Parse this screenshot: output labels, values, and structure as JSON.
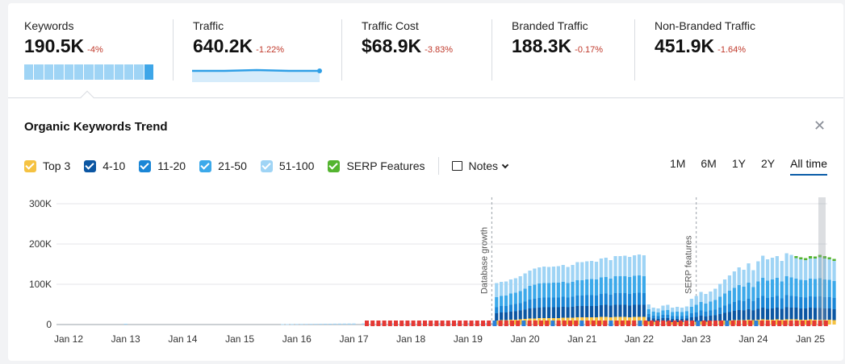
{
  "metrics": [
    {
      "label": "Keywords",
      "value": "190.5K",
      "change": "-4%"
    },
    {
      "label": "Traffic",
      "value": "640.2K",
      "change": "-1.22%"
    },
    {
      "label": "Traffic Cost",
      "value": "$68.9K",
      "change": "-3.83%"
    },
    {
      "label": "Branded Traffic",
      "value": "188.3K",
      "change": "-0.17%"
    },
    {
      "label": "Non-Branded Traffic",
      "value": "451.9K",
      "change": "-1.64%"
    }
  ],
  "panel": {
    "title": "Organic Keywords Trend"
  },
  "legend": [
    {
      "label": "Top 3",
      "color": "#f5c242"
    },
    {
      "label": "4-10",
      "color": "#0b56a3"
    },
    {
      "label": "11-20",
      "color": "#1a86d6"
    },
    {
      "label": "21-50",
      "color": "#3ca9ea"
    },
    {
      "label": "51-100",
      "color": "#9fd4f5"
    },
    {
      "label": "SERP Features",
      "color": "#54b430"
    }
  ],
  "notes_label": "Notes",
  "ranges": [
    "1M",
    "6M",
    "1Y",
    "2Y",
    "All time"
  ],
  "chart_data": {
    "type": "bar",
    "stacked": true,
    "ylim": [
      0,
      300000
    ],
    "y_ticks": [
      0,
      100000,
      200000,
      300000
    ],
    "y_tick_labels": [
      "0",
      "100K",
      "200K",
      "300K"
    ],
    "x_tick_labels": [
      "Jan 12",
      "Jan 13",
      "Jan 14",
      "Jan 15",
      "Jan 16",
      "Jan 17",
      "Jan 18",
      "Jan 19",
      "Jan 20",
      "Jan 21",
      "Jan 22",
      "Jan 23",
      "Jan 24",
      "Jan 25"
    ],
    "annotations": [
      {
        "text": "Database growth",
        "x": "2019-06"
      },
      {
        "text": "SERP features",
        "x": "2023-01"
      }
    ],
    "series_order": [
      "Top 3",
      "4-10",
      "11-20",
      "21-50",
      "51-100",
      "SERP Features"
    ],
    "points": [
      {
        "x": "2013-01",
        "values": [
          0,
          0,
          0,
          0,
          2000,
          0
        ]
      },
      {
        "x": "2015-10",
        "values": [
          0,
          0,
          0,
          0,
          1000,
          0
        ]
      },
      {
        "x": "2015-11",
        "values": [
          0,
          0,
          0,
          0,
          1000,
          0
        ]
      },
      {
        "x": "2015-12",
        "values": [
          0,
          0,
          0,
          0,
          1200,
          0
        ]
      },
      {
        "x": "2016-01",
        "values": [
          0,
          0,
          0,
          0,
          1300,
          0
        ]
      },
      {
        "x": "2016-02",
        "values": [
          0,
          0,
          0,
          0,
          1400,
          0
        ]
      },
      {
        "x": "2016-03",
        "values": [
          0,
          0,
          0,
          0,
          1500,
          0
        ]
      },
      {
        "x": "2016-04",
        "values": [
          0,
          0,
          0,
          0,
          1600,
          0
        ]
      },
      {
        "x": "2016-05",
        "values": [
          0,
          0,
          0,
          0,
          1700,
          0
        ]
      },
      {
        "x": "2016-06",
        "values": [
          0,
          0,
          0,
          0,
          1800,
          0
        ]
      },
      {
        "x": "2016-07",
        "values": [
          0,
          0,
          0,
          0,
          2000,
          0
        ]
      },
      {
        "x": "2016-08",
        "values": [
          0,
          0,
          0,
          0,
          2000,
          0
        ]
      },
      {
        "x": "2016-09",
        "values": [
          0,
          0,
          0,
          0,
          2200,
          0
        ]
      },
      {
        "x": "2016-10",
        "values": [
          0,
          0,
          0,
          0,
          2300,
          0
        ]
      },
      {
        "x": "2016-11",
        "values": [
          0,
          0,
          0,
          0,
          2400,
          0
        ]
      },
      {
        "x": "2016-12",
        "values": [
          0,
          0,
          0,
          0,
          2500,
          0
        ]
      },
      {
        "x": "2017-01",
        "values": [
          0,
          0,
          0,
          0,
          2600,
          0
        ]
      },
      {
        "x": "2017-03",
        "values": [
          0,
          0,
          0,
          0,
          2700,
          0
        ]
      },
      {
        "x": "2017-05",
        "values": [
          0,
          0,
          0,
          0,
          2800,
          0
        ]
      },
      {
        "x": "2017-07",
        "values": [
          0,
          0,
          0,
          0,
          2800,
          0
        ]
      },
      {
        "x": "2017-09",
        "values": [
          0,
          0,
          0,
          0,
          2900,
          0
        ]
      },
      {
        "x": "2017-11",
        "values": [
          0,
          0,
          0,
          0,
          3000,
          0
        ]
      },
      {
        "x": "2018-01",
        "values": [
          0,
          0,
          0,
          0,
          3000,
          0
        ]
      },
      {
        "x": "2018-03",
        "values": [
          0,
          0,
          0,
          0,
          3000,
          0
        ]
      },
      {
        "x": "2018-05",
        "values": [
          0,
          0,
          0,
          0,
          3100,
          0
        ]
      },
      {
        "x": "2018-07",
        "values": [
          0,
          0,
          0,
          0,
          3200,
          0
        ]
      },
      {
        "x": "2018-09",
        "values": [
          0,
          0,
          0,
          0,
          3200,
          0
        ]
      },
      {
        "x": "2018-11",
        "values": [
          0,
          0,
          0,
          0,
          3300,
          0
        ]
      },
      {
        "x": "2019-01",
        "values": [
          0,
          0,
          0,
          0,
          3300,
          0
        ]
      },
      {
        "x": "2019-03",
        "values": [
          0,
          0,
          0,
          0,
          3400,
          0
        ]
      },
      {
        "x": "2019-05",
        "values": [
          0,
          0,
          0,
          0,
          3500,
          0
        ]
      },
      {
        "x": "2019-07",
        "values": [
          10000,
          18000,
          15000,
          25000,
          35000,
          0
        ]
      },
      {
        "x": "2019-08",
        "values": [
          11000,
          19000,
          16000,
          25000,
          35000,
          0
        ]
      },
      {
        "x": "2019-09",
        "values": [
          11000,
          19000,
          16000,
          26000,
          35000,
          0
        ]
      },
      {
        "x": "2019-10",
        "values": [
          12000,
          20000,
          17000,
          28000,
          35000,
          0
        ]
      },
      {
        "x": "2019-11",
        "values": [
          12000,
          21000,
          18000,
          28000,
          36000,
          0
        ]
      },
      {
        "x": "2019-12",
        "values": [
          13000,
          22000,
          18000,
          30000,
          37000,
          0
        ]
      },
      {
        "x": "2020-01",
        "values": [
          14000,
          23000,
          20000,
          32000,
          38000,
          0
        ]
      },
      {
        "x": "2020-02",
        "values": [
          15000,
          25000,
          22000,
          34000,
          38000,
          0
        ]
      },
      {
        "x": "2020-03",
        "values": [
          15000,
          26000,
          23000,
          35000,
          40000,
          0
        ]
      },
      {
        "x": "2020-04",
        "values": [
          16000,
          26000,
          24000,
          36000,
          40000,
          0
        ]
      },
      {
        "x": "2020-05",
        "values": [
          16000,
          27000,
          24000,
          36000,
          41000,
          0
        ]
      },
      {
        "x": "2020-06",
        "values": [
          16000,
          27000,
          24000,
          36000,
          40000,
          0
        ]
      },
      {
        "x": "2020-07",
        "values": [
          16000,
          27000,
          24000,
          37000,
          40000,
          0
        ]
      },
      {
        "x": "2020-08",
        "values": [
          16000,
          27000,
          24000,
          37000,
          41000,
          0
        ]
      },
      {
        "x": "2020-09",
        "values": [
          17000,
          27000,
          25000,
          37000,
          42000,
          0
        ]
      },
      {
        "x": "2020-10",
        "values": [
          17000,
          26000,
          24000,
          36000,
          40000,
          0
        ]
      },
      {
        "x": "2020-11",
        "values": [
          17000,
          27000,
          25000,
          37000,
          42000,
          0
        ]
      },
      {
        "x": "2020-12",
        "values": [
          18000,
          28000,
          26000,
          38000,
          45000,
          0
        ]
      },
      {
        "x": "2021-01",
        "values": [
          18000,
          28000,
          26000,
          38000,
          45000,
          0
        ]
      },
      {
        "x": "2021-02",
        "values": [
          18000,
          28000,
          27000,
          39000,
          45000,
          0
        ]
      },
      {
        "x": "2021-03",
        "values": [
          18000,
          28000,
          27000,
          40000,
          45000,
          0
        ]
      },
      {
        "x": "2021-04",
        "values": [
          18000,
          28000,
          26000,
          40000,
          44000,
          0
        ]
      },
      {
        "x": "2021-05",
        "values": [
          19000,
          29000,
          28000,
          41000,
          47000,
          0
        ]
      },
      {
        "x": "2021-06",
        "values": [
          19000,
          30000,
          28000,
          41000,
          48000,
          0
        ]
      },
      {
        "x": "2021-07",
        "values": [
          18000,
          29000,
          27000,
          40000,
          46000,
          0
        ]
      },
      {
        "x": "2021-08",
        "values": [
          19000,
          30000,
          29000,
          42000,
          50000,
          0
        ]
      },
      {
        "x": "2021-09",
        "values": [
          19000,
          30000,
          29000,
          42000,
          50000,
          0
        ]
      },
      {
        "x": "2021-10",
        "values": [
          19000,
          30000,
          29000,
          42000,
          51000,
          0
        ]
      },
      {
        "x": "2021-11",
        "values": [
          18000,
          29000,
          29000,
          42000,
          50000,
          0
        ]
      },
      {
        "x": "2021-12",
        "values": [
          19000,
          30000,
          29000,
          43000,
          51000,
          0
        ]
      },
      {
        "x": "2022-01",
        "values": [
          19000,
          30000,
          30000,
          43000,
          52000,
          0
        ]
      },
      {
        "x": "2022-02",
        "values": [
          19000,
          30000,
          29000,
          42000,
          52000,
          0
        ]
      },
      {
        "x": "2022-03",
        "values": [
          8000,
          10000,
          8000,
          12000,
          12000,
          0
        ]
      },
      {
        "x": "2022-04",
        "values": [
          7000,
          8000,
          7000,
          10000,
          10000,
          0
        ]
      },
      {
        "x": "2022-05",
        "values": [
          6000,
          8000,
          7000,
          9000,
          10000,
          0
        ]
      },
      {
        "x": "2022-06",
        "values": [
          7000,
          9000,
          8000,
          11000,
          12000,
          0
        ]
      },
      {
        "x": "2022-07",
        "values": [
          7000,
          9000,
          8000,
          12000,
          13000,
          0
        ]
      },
      {
        "x": "2022-08",
        "values": [
          6000,
          8000,
          7000,
          10000,
          11000,
          0
        ]
      },
      {
        "x": "2022-09",
        "values": [
          6000,
          8000,
          7000,
          11000,
          12000,
          0
        ]
      },
      {
        "x": "2022-10",
        "values": [
          6000,
          8000,
          7000,
          10000,
          11000,
          0
        ]
      },
      {
        "x": "2022-11",
        "values": [
          6000,
          9000,
          7000,
          11000,
          12000,
          0
        ]
      },
      {
        "x": "2022-12",
        "values": [
          7000,
          11000,
          10000,
          16000,
          20000,
          0
        ]
      },
      {
        "x": "2023-01",
        "values": [
          7000,
          12000,
          11000,
          19000,
          22000,
          0
        ]
      },
      {
        "x": "2023-02",
        "values": [
          8000,
          14000,
          13000,
          21000,
          25000,
          0
        ]
      },
      {
        "x": "2023-03",
        "values": [
          7000,
          13000,
          12000,
          20000,
          24000,
          0
        ]
      },
      {
        "x": "2023-04",
        "values": [
          8000,
          14000,
          13000,
          22000,
          25000,
          0
        ]
      },
      {
        "x": "2023-05",
        "values": [
          8000,
          15000,
          14000,
          24000,
          28000,
          0
        ]
      },
      {
        "x": "2023-06",
        "values": [
          9000,
          17000,
          16000,
          27000,
          32000,
          0
        ]
      },
      {
        "x": "2023-07",
        "values": [
          10000,
          19000,
          18000,
          30000,
          35000,
          0
        ]
      },
      {
        "x": "2023-08",
        "values": [
          10000,
          21000,
          20000,
          33000,
          38000,
          0
        ]
      },
      {
        "x": "2023-09",
        "values": [
          11000,
          23000,
          22000,
          35000,
          41000,
          0
        ]
      },
      {
        "x": "2023-10",
        "values": [
          11000,
          25000,
          24000,
          38000,
          44000,
          0
        ]
      },
      {
        "x": "2023-11",
        "values": [
          11000,
          24000,
          23000,
          36000,
          42000,
          0
        ]
      },
      {
        "x": "2023-12",
        "values": [
          12000,
          26000,
          26000,
          40000,
          48000,
          0
        ]
      },
      {
        "x": "2024-01",
        "values": [
          11000,
          24000,
          23000,
          35000,
          42000,
          0
        ]
      },
      {
        "x": "2024-02",
        "values": [
          12000,
          27000,
          27000,
          41000,
          50000,
          0
        ]
      },
      {
        "x": "2024-03",
        "values": [
          13000,
          29000,
          29000,
          45000,
          55000,
          0
        ]
      },
      {
        "x": "2024-04",
        "values": [
          12000,
          27000,
          27000,
          43000,
          53000,
          0
        ]
      },
      {
        "x": "2024-05",
        "values": [
          12000,
          28000,
          28000,
          44000,
          54000,
          0
        ]
      },
      {
        "x": "2024-06",
        "values": [
          13000,
          29000,
          29000,
          45000,
          54000,
          0
        ]
      },
      {
        "x": "2024-07",
        "values": [
          12000,
          27000,
          26000,
          42000,
          51000,
          0
        ]
      },
      {
        "x": "2024-08",
        "values": [
          13000,
          30000,
          30000,
          47000,
          57000,
          0
        ]
      },
      {
        "x": "2024-09",
        "values": [
          13000,
          29000,
          29000,
          46000,
          56000,
          0
        ]
      },
      {
        "x": "2024-10",
        "values": [
          13000,
          29000,
          28000,
          44000,
          51000,
          5000
        ]
      },
      {
        "x": "2024-11",
        "values": [
          12000,
          28000,
          28000,
          43000,
          51000,
          5000
        ]
      },
      {
        "x": "2024-12",
        "values": [
          12000,
          28000,
          27000,
          43000,
          50000,
          5000
        ]
      },
      {
        "x": "2025-01",
        "values": [
          13000,
          29000,
          28000,
          44000,
          50000,
          6000
        ]
      },
      {
        "x": "2025-02",
        "values": [
          12000,
          29000,
          28000,
          44000,
          51000,
          5000
        ]
      },
      {
        "x": "2025-03",
        "values": [
          12000,
          29000,
          29000,
          45000,
          52000,
          6000
        ]
      },
      {
        "x": "2025-04",
        "values": [
          12000,
          28000,
          28000,
          44000,
          52000,
          6000
        ]
      },
      {
        "x": "2025-05",
        "values": [
          12000,
          28000,
          28000,
          43000,
          51000,
          5000
        ]
      },
      {
        "x": "2025-06",
        "values": [
          11000,
          27000,
          28000,
          42000,
          50000,
          5000
        ]
      }
    ]
  }
}
